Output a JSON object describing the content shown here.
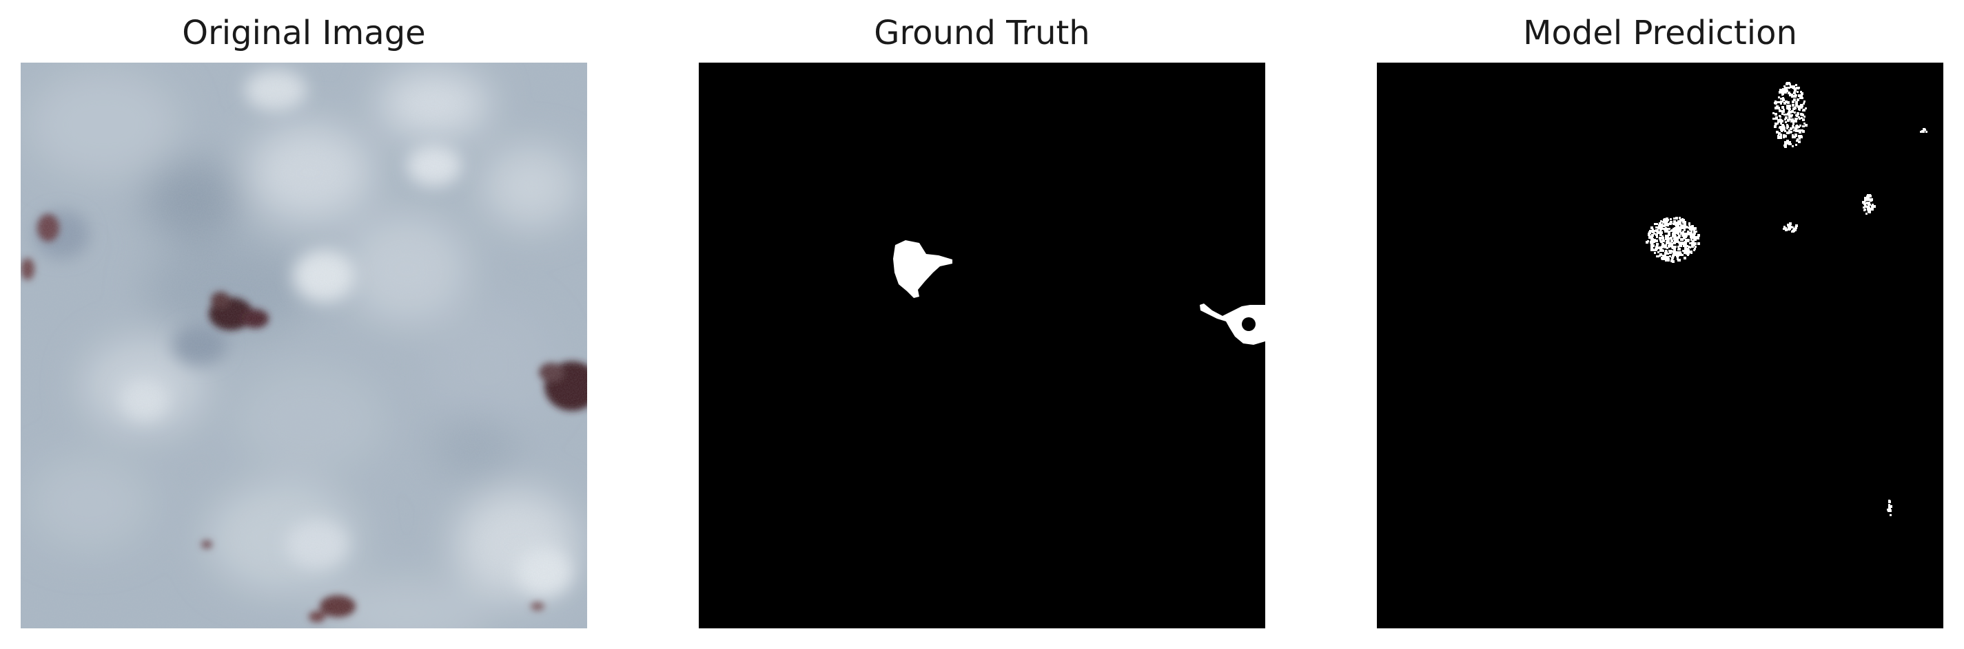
{
  "panels": [
    {
      "title": "Original Image",
      "kind": "photo"
    },
    {
      "title": "Ground Truth",
      "kind": "mask"
    },
    {
      "title": "Model Prediction",
      "kind": "prediction"
    }
  ],
  "colors": {
    "photo_base": "#a9b6c3",
    "photo_light": "#d4dbe2",
    "photo_dark_spot": "#3d1f22",
    "mask_background": "#000000",
    "mask_foreground": "#ffffff"
  }
}
